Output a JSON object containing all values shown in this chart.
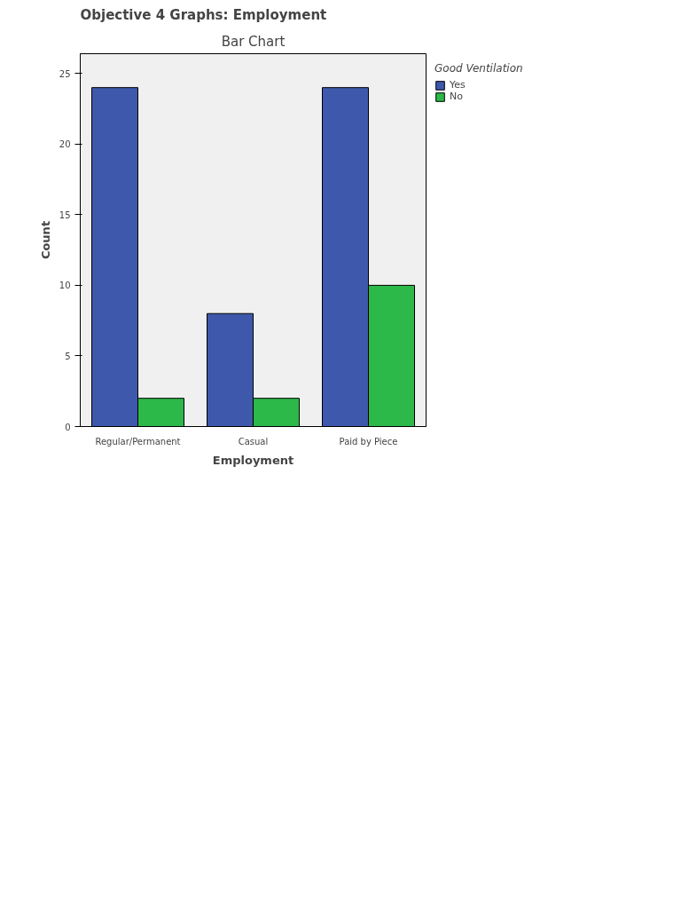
{
  "chart_data": {
    "type": "bar",
    "title": "Objective 4 Graphs: Employment",
    "subtitle": "Bar Chart",
    "xlabel": "Employment",
    "ylabel": "Count",
    "legend_title": "Good Ventilation",
    "categories": [
      "Regular/Permanent",
      "Casual",
      "Paid by Piece"
    ],
    "series": [
      {
        "name": "Yes",
        "color": "#3e58ac",
        "values": [
          24,
          8,
          24
        ]
      },
      {
        "name": "No",
        "color": "#2db84a",
        "values": [
          2,
          2,
          10
        ]
      }
    ],
    "ylim": [
      0,
      26.4
    ],
    "yticks": [
      0,
      5,
      10,
      15,
      20,
      25
    ],
    "grid": false,
    "legend": "top right"
  }
}
